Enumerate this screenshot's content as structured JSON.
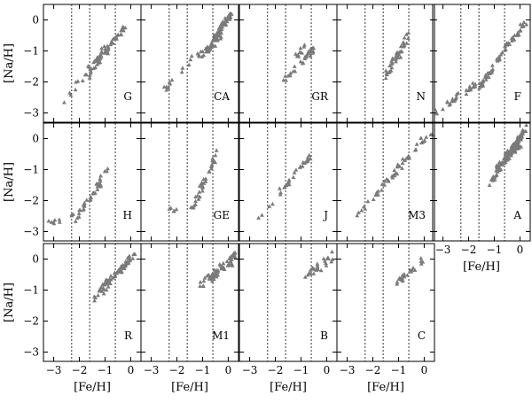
{
  "chart_data": {
    "type": "scatter",
    "marker": "triangle",
    "marker_color": "#7a7a7a",
    "xlabel": "[Fe/H]",
    "ylabel": "[Na/H]",
    "xlim": [
      -3.4,
      0.4
    ],
    "ylim": [
      -3.3,
      0.5
    ],
    "xticks": [
      -3,
      -2,
      -1,
      0
    ],
    "yticks": [
      -3,
      -2,
      -1,
      0
    ],
    "xtick_labels": [
      "−3",
      "−2",
      "−1",
      "0"
    ],
    "ytick_labels": [
      "−3",
      "−2",
      "−1",
      "0"
    ],
    "reference_lines_x": [
      -2.3,
      -1.6,
      -0.6
    ],
    "reference_line_style": "dotted",
    "layout": "3 rows × 5 columns; bottom-right slot empty",
    "panels": [
      {
        "label": "G",
        "segments": [
          [
            -2.6,
            -2.65,
            -0.7,
            -0.5,
            8
          ],
          [
            -1.7,
            -1.9,
            -0.9,
            -0.95,
            22
          ],
          [
            -1.3,
            -1.25,
            -0.15,
            -0.2,
            34
          ],
          [
            -2.3,
            -2.35,
            -1.3,
            -1.25,
            10
          ]
        ]
      },
      {
        "label": "CA",
        "segments": [
          [
            -2.5,
            -2.25,
            -1.2,
            -1.05,
            12
          ],
          [
            -1.2,
            -1.2,
            -0.25,
            -0.55,
            34
          ],
          [
            -0.6,
            -0.7,
            0.1,
            0.2,
            60
          ]
        ]
      },
      {
        "label": "GR",
        "segments": [
          [
            -1.7,
            -2.0,
            -0.5,
            -0.95,
            30
          ],
          [
            -1.2,
            -1.2,
            -0.8,
            -0.85,
            10
          ]
        ]
      },
      {
        "label": "N",
        "segments": [
          [
            -1.5,
            -1.8,
            -0.55,
            -0.35,
            36
          ],
          [
            -1.1,
            -1.35,
            -0.7,
            -0.75,
            8
          ]
        ]
      },
      {
        "label": "F",
        "segments": [
          [
            -3.3,
            -3.0,
            -1.7,
            -2.05,
            26
          ],
          [
            -1.6,
            -2.2,
            -1.0,
            -1.5,
            28
          ],
          [
            -0.9,
            -1.3,
            0.2,
            -0.1,
            36
          ]
        ]
      },
      {
        "label": "H",
        "segments": [
          [
            -3.2,
            -2.75,
            -2.2,
            -2.5,
            10
          ],
          [
            -2.2,
            -2.6,
            -1.1,
            -1.4,
            30
          ],
          [
            -1.4,
            -1.6,
            -0.9,
            -0.9,
            10
          ]
        ]
      },
      {
        "label": "GE",
        "segments": [
          [
            -2.4,
            -2.3,
            -2.0,
            -2.3,
            6
          ],
          [
            -1.4,
            -2.3,
            -0.4,
            -0.35,
            34
          ]
        ]
      },
      {
        "label": "J",
        "segments": [
          [
            -2.7,
            -2.6,
            -2.1,
            -2.0,
            4
          ],
          [
            -2.0,
            -1.9,
            -0.5,
            -0.45,
            26
          ]
        ]
      },
      {
        "label": "M3",
        "segments": [
          [
            -2.6,
            -2.5,
            -1.8,
            -1.7,
            8
          ],
          [
            -1.9,
            -1.8,
            -0.3,
            -0.3,
            30
          ],
          [
            -0.4,
            -0.3,
            0.3,
            0.2,
            10
          ]
        ]
      },
      {
        "label": "A",
        "segments": [
          [
            -1.2,
            -1.5,
            -0.7,
            -0.85,
            18
          ],
          [
            -0.9,
            -1.0,
            0.3,
            0.4,
            80
          ],
          [
            -0.7,
            -0.8,
            0.0,
            -0.2,
            28
          ]
        ]
      },
      {
        "label": "R",
        "segments": [
          [
            -1.5,
            -1.35,
            -0.9,
            -0.95,
            8
          ],
          [
            -1.2,
            -1.0,
            0.0,
            0.0,
            50
          ],
          [
            -0.9,
            -0.8,
            0.2,
            0.15,
            22
          ]
        ]
      },
      {
        "label": "M1",
        "segments": [
          [
            -1.1,
            -0.85,
            0.3,
            0.15,
            48
          ],
          [
            -0.7,
            -0.7,
            0.2,
            -0.1,
            14
          ]
        ]
      },
      {
        "label": "B",
        "segments": [
          [
            -0.95,
            -0.65,
            0.35,
            0.25,
            22
          ],
          [
            -0.6,
            -0.6,
            0.3,
            0.0,
            6
          ]
        ]
      },
      {
        "label": "C",
        "segments": [
          [
            -1.2,
            -0.85,
            -0.05,
            0.0,
            22
          ]
        ]
      }
    ]
  }
}
